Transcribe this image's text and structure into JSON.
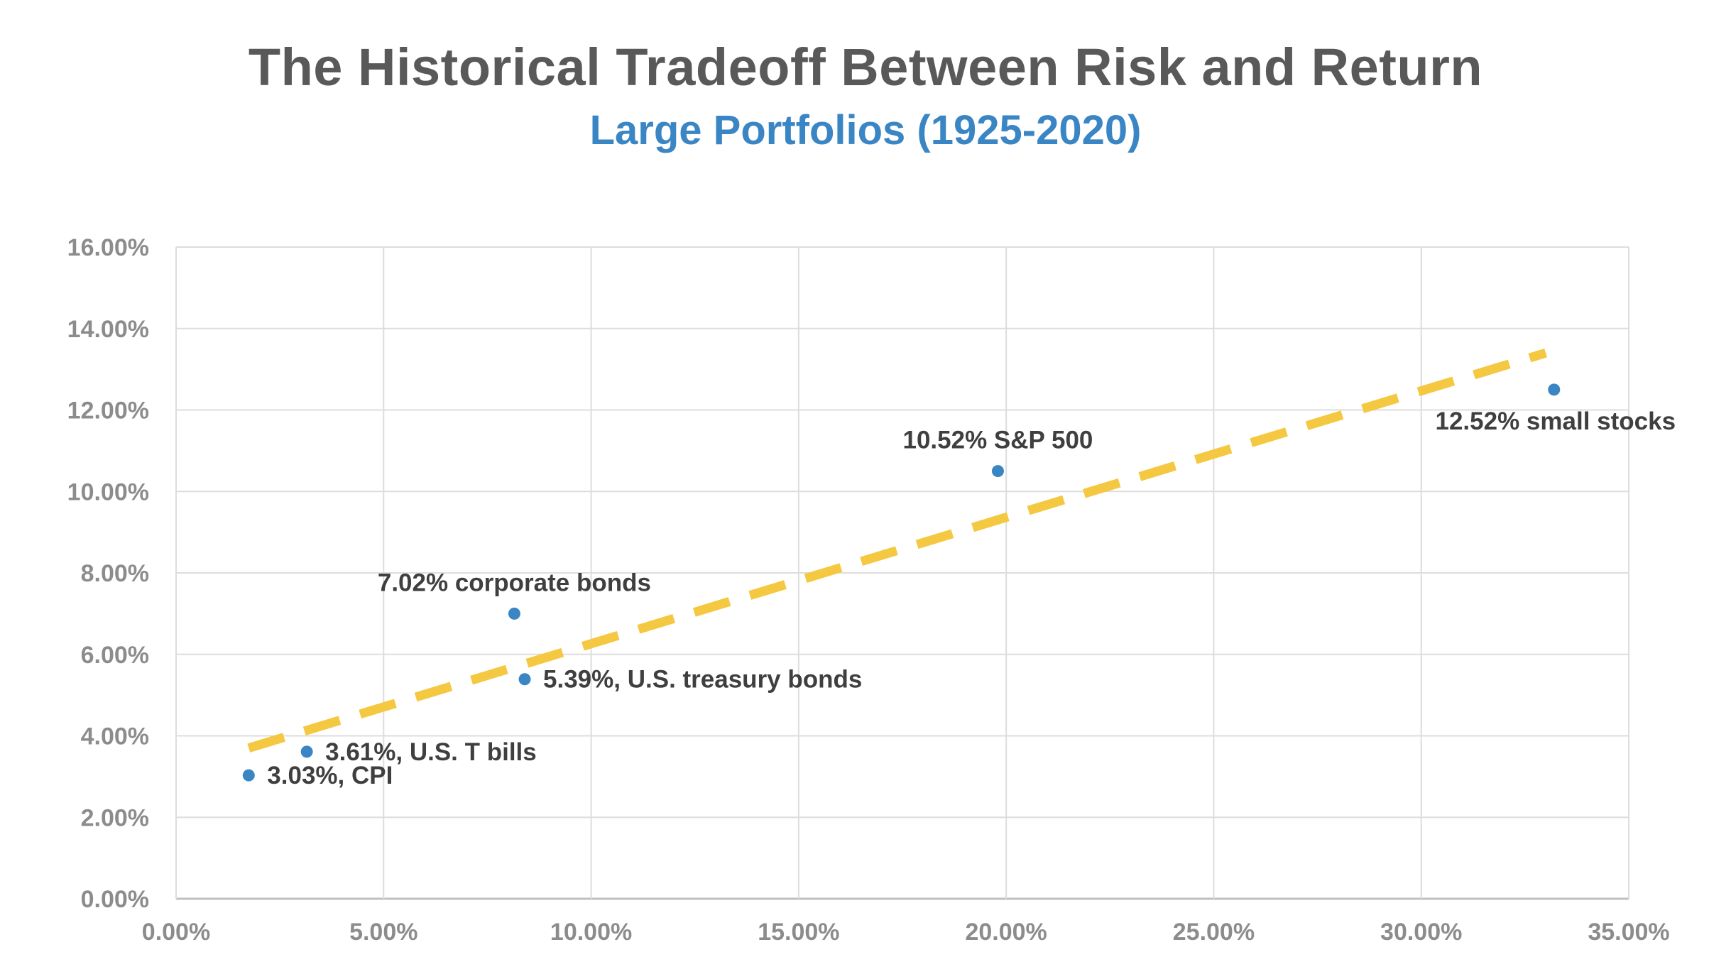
{
  "chart_data": {
    "type": "scatter",
    "title": "The Historical Tradeoff Between Risk and Return",
    "subtitle": "Large Portfolios (1925-2020)",
    "xlabel": "",
    "ylabel": "",
    "xlim": [
      0,
      35
    ],
    "ylim": [
      0,
      16
    ],
    "x_ticks": [
      0,
      5,
      10,
      15,
      20,
      25,
      30,
      35
    ],
    "y_ticks": [
      0,
      2,
      4,
      6,
      8,
      10,
      12,
      14,
      16
    ],
    "x_tick_labels": [
      "0.00%",
      "5.00%",
      "10.00%",
      "15.00%",
      "20.00%",
      "25.00%",
      "30.00%",
      "35.00%"
    ],
    "y_tick_labels": [
      "0.00%",
      "2.00%",
      "4.00%",
      "6.00%",
      "8.00%",
      "10.00%",
      "12.00%",
      "14.00%",
      "16.00%"
    ],
    "grid": true,
    "points": [
      {
        "label": "3.03%, CPI",
        "x": 1.75,
        "y": 3.03
      },
      {
        "label": "3.61%, U.S. T bills",
        "x": 3.15,
        "y": 3.61
      },
      {
        "label": "5.39%, U.S. treasury bonds",
        "x": 8.4,
        "y": 5.39
      },
      {
        "label": "7.02% corporate bonds",
        "x": 8.15,
        "y": 7.0
      },
      {
        "label": "10.52% S&P 500",
        "x": 19.8,
        "y": 10.5
      },
      {
        "label": "12.52% small stocks",
        "x": 33.2,
        "y": 12.5
      }
    ],
    "trendline": {
      "style": "dashed",
      "x": [
        1.75,
        33.0
      ],
      "y": [
        3.7,
        13.4
      ]
    },
    "colors": {
      "points": "#3a86c4",
      "trendline": "#f5c842",
      "grid": "#dddddd",
      "title": "#595959",
      "subtitle": "#3a86c4"
    }
  }
}
